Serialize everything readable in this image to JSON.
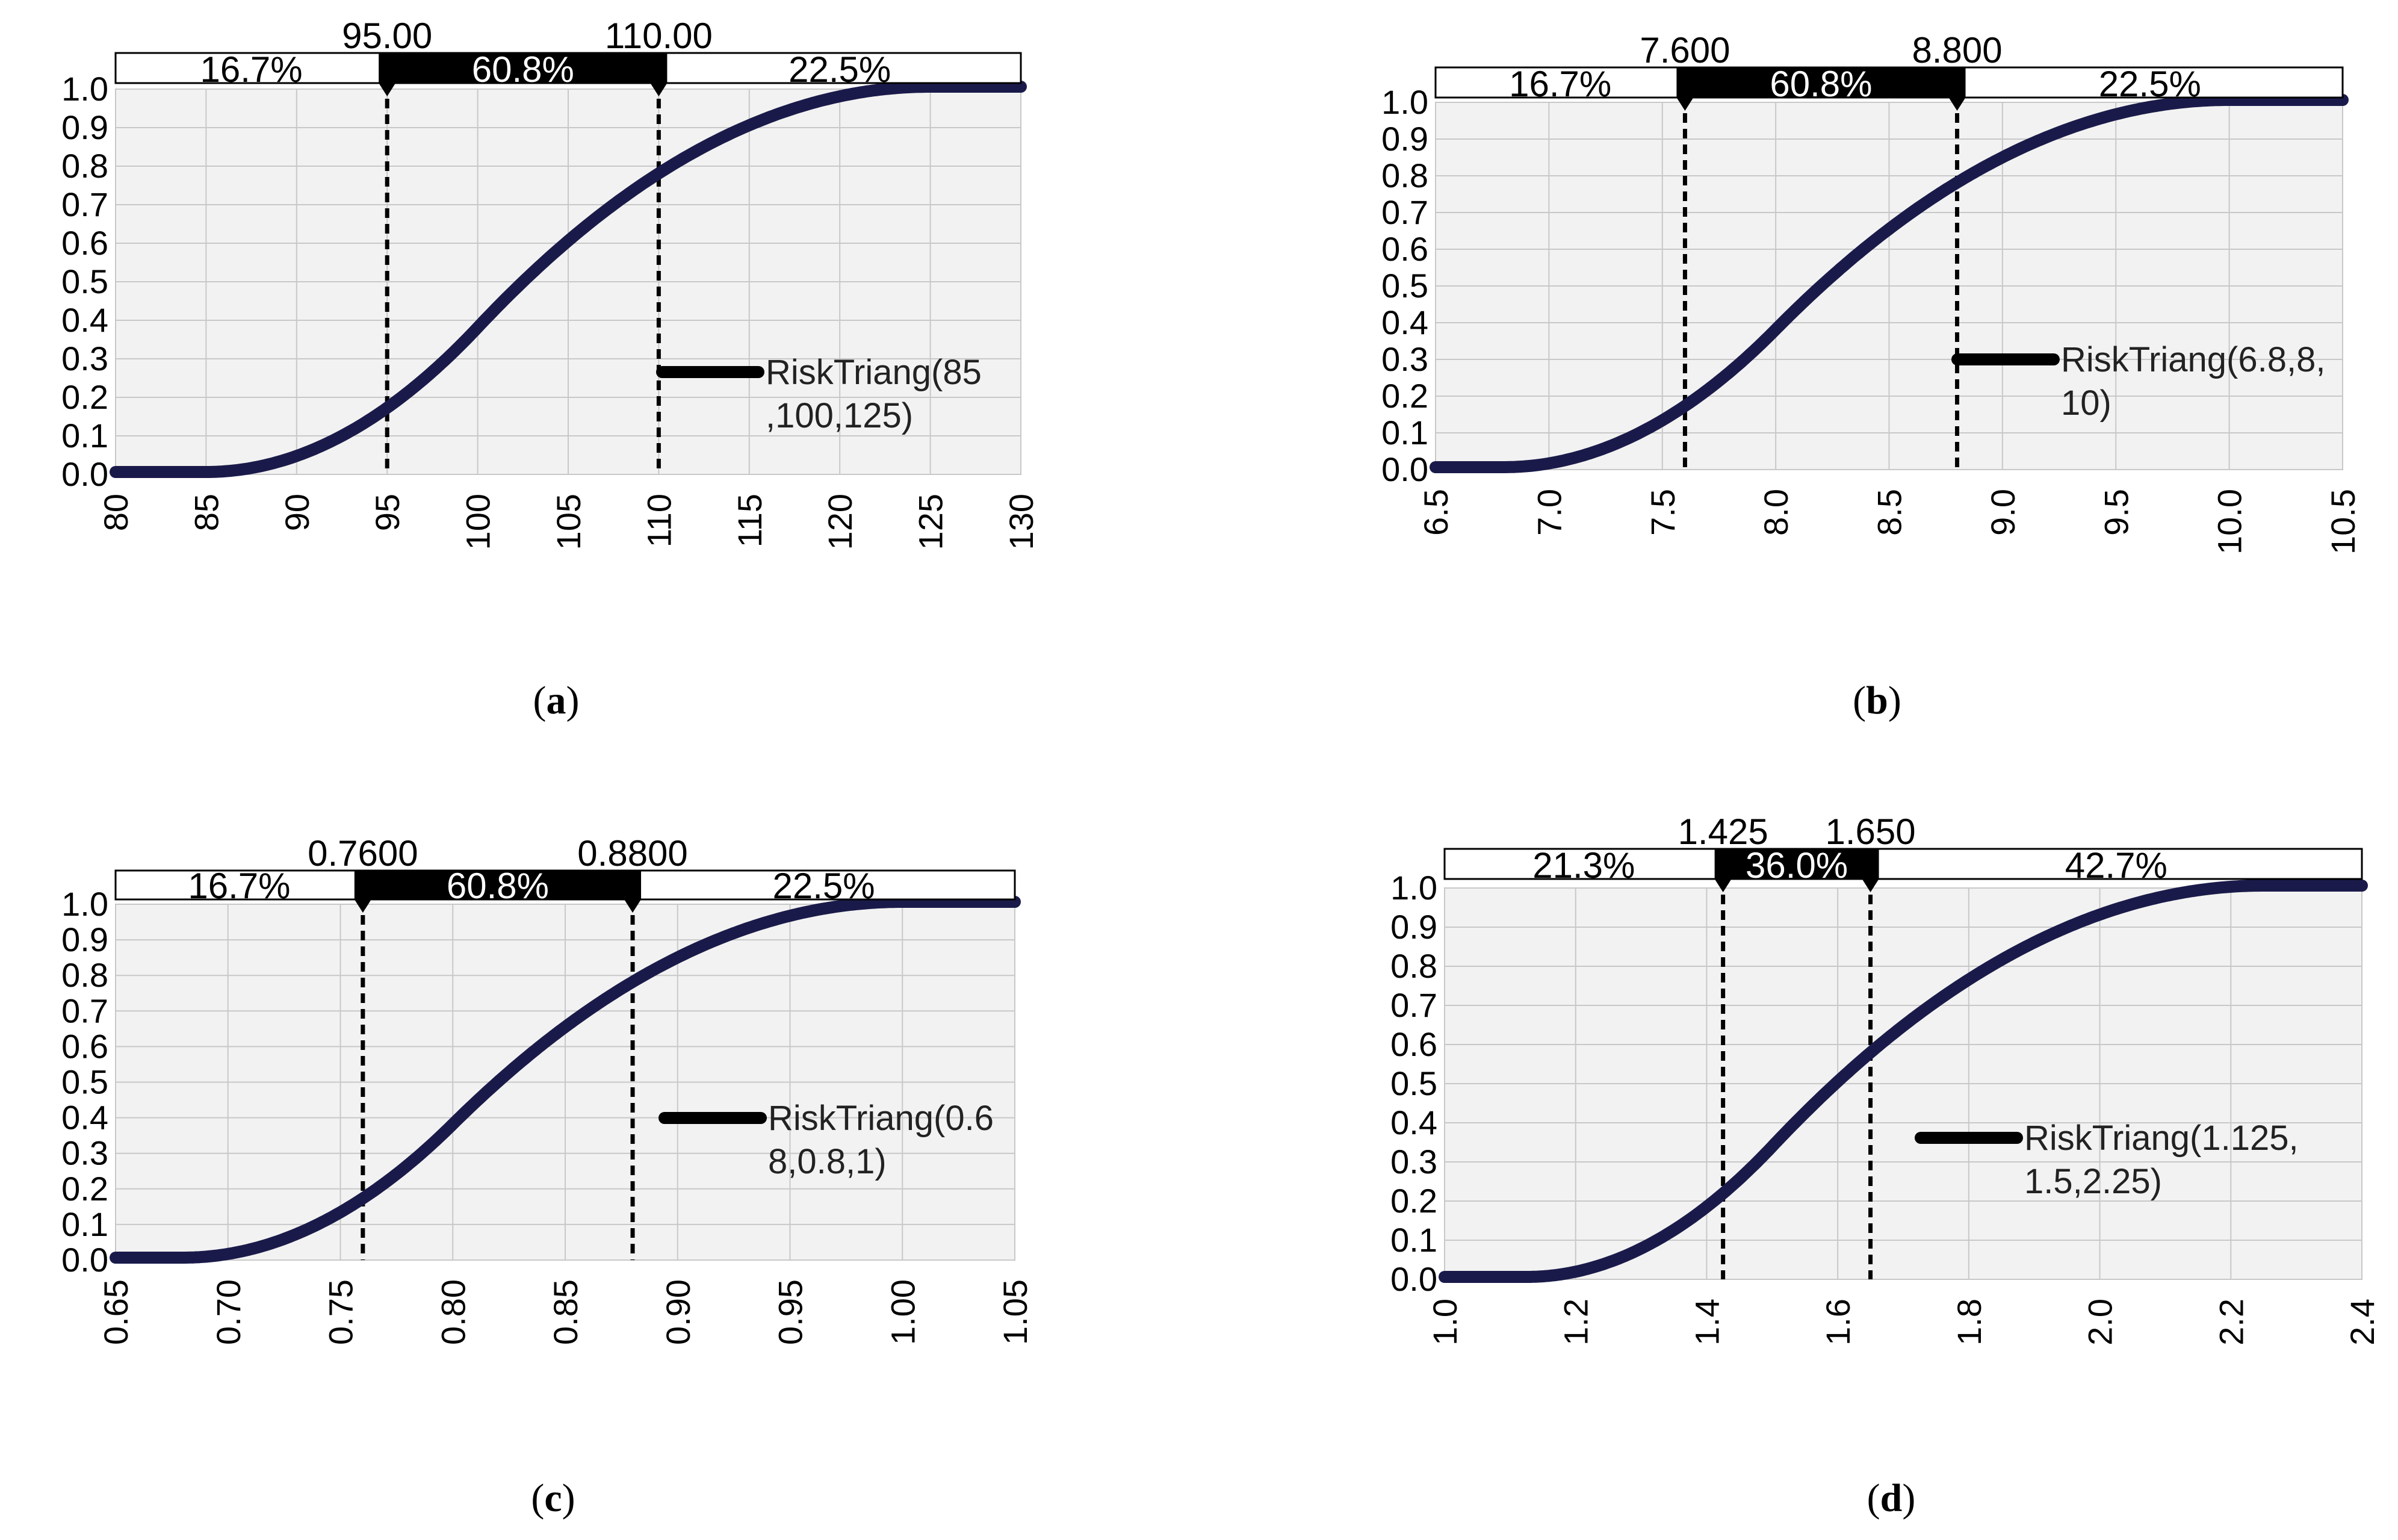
{
  "chart_data": [
    {
      "panel_label": "a",
      "type": "line",
      "series_name": "RiskTriang(85,100,125)",
      "distribution": {
        "name": "RiskTriang",
        "min": 85,
        "mode": 100,
        "max": 125
      },
      "legend_lines": [
        "RiskTriang(85",
        ",100,125)"
      ],
      "xlim": [
        80,
        130
      ],
      "xticks": [
        80,
        85,
        90,
        95,
        100,
        105,
        110,
        115,
        120,
        125,
        130
      ],
      "xtick_labels": [
        "80",
        "85",
        "90",
        "95",
        "100",
        "105",
        "110",
        "115",
        "120",
        "125",
        "130"
      ],
      "ylim": [
        0,
        1
      ],
      "yticks": [
        "0.0",
        "0.1",
        "0.2",
        "0.3",
        "0.4",
        "0.5",
        "0.6",
        "0.7",
        "0.8",
        "0.9",
        "1.0"
      ],
      "markers": [
        95,
        110
      ],
      "marker_labels": [
        "95.00",
        "110.00"
      ],
      "percent_labels": [
        "16.7%",
        "60.8%",
        "22.5%"
      ],
      "legend_placement": "center-right",
      "grid": true,
      "xlabel": "",
      "ylabel": ""
    },
    {
      "panel_label": "b",
      "type": "line",
      "series_name": "RiskTriang(6.8,8,10)",
      "distribution": {
        "name": "RiskTriang",
        "min": 6.8,
        "mode": 8,
        "max": 10
      },
      "legend_lines": [
        "RiskTriang(6.8,8,",
        "10)"
      ],
      "xlim": [
        6.5,
        10.5
      ],
      "xticks": [
        6.5,
        7.0,
        7.5,
        8.0,
        8.5,
        9.0,
        9.5,
        10.0,
        10.5
      ],
      "xtick_labels": [
        "6.5",
        "7.0",
        "7.5",
        "8.0",
        "8.5",
        "9.0",
        "9.5",
        "10.0",
        "10.5"
      ],
      "ylim": [
        0,
        1
      ],
      "yticks": [
        "0.0",
        "0.1",
        "0.2",
        "0.3",
        "0.4",
        "0.5",
        "0.6",
        "0.7",
        "0.8",
        "0.9",
        "1.0"
      ],
      "markers": [
        7.6,
        8.8
      ],
      "marker_labels": [
        "7.600",
        "8.800"
      ],
      "percent_labels": [
        "16.7%",
        "60.8%",
        "22.5%"
      ],
      "legend_placement": "center-right",
      "grid": true,
      "xlabel": "",
      "ylabel": ""
    },
    {
      "panel_label": "c",
      "type": "line",
      "series_name": "RiskTriang(0.68,0.8,1)",
      "distribution": {
        "name": "RiskTriang",
        "min": 0.68,
        "mode": 0.8,
        "max": 1
      },
      "legend_lines": [
        "RiskTriang(0.6",
        "8,0.8,1)"
      ],
      "xlim": [
        0.65,
        1.05
      ],
      "xticks": [
        0.65,
        0.7,
        0.75,
        0.8,
        0.85,
        0.9,
        0.95,
        1.0,
        1.05
      ],
      "xtick_labels": [
        "0.65",
        "0.70",
        "0.75",
        "0.80",
        "0.85",
        "0.90",
        "0.95",
        "1.00",
        "1.05"
      ],
      "ylim": [
        0,
        1
      ],
      "yticks": [
        "0.0",
        "0.1",
        "0.2",
        "0.3",
        "0.4",
        "0.5",
        "0.6",
        "0.7",
        "0.8",
        "0.9",
        "1.0"
      ],
      "markers": [
        0.76,
        0.88
      ],
      "marker_labels": [
        "0.7600",
        "0.8800"
      ],
      "percent_labels": [
        "16.7%",
        "60.8%",
        "22.5%"
      ],
      "legend_placement": "center-right",
      "grid": true,
      "xlabel": "",
      "ylabel": ""
    },
    {
      "panel_label": "d",
      "type": "line",
      "series_name": "RiskTriang(1.125,1.5,2.25)",
      "distribution": {
        "name": "RiskTriang",
        "min": 1.125,
        "mode": 1.5,
        "max": 2.25
      },
      "legend_lines": [
        "RiskTriang(1.125,",
        "1.5,2.25)"
      ],
      "xlim": [
        1.0,
        2.4
      ],
      "xticks": [
        1.0,
        1.2,
        1.4,
        1.6,
        1.8,
        2.0,
        2.2,
        2.4
      ],
      "xtick_labels": [
        "1.0",
        "1.2",
        "1.4",
        "1.6",
        "1.8",
        "2.0",
        "2.2",
        "2.4"
      ],
      "ylim": [
        0,
        1
      ],
      "yticks": [
        "0.0",
        "0.1",
        "0.2",
        "0.3",
        "0.4",
        "0.5",
        "0.6",
        "0.7",
        "0.8",
        "0.9",
        "1.0"
      ],
      "markers": [
        1.425,
        1.65
      ],
      "marker_labels": [
        "1.425",
        "1.650"
      ],
      "percent_labels": [
        "21.3%",
        "36.0%",
        "42.7%"
      ],
      "legend_placement": "center-right",
      "grid": true,
      "xlabel": "",
      "ylabel": ""
    }
  ],
  "colors": {
    "plot_background": "#f2f2f2",
    "grid": "#c8c8c8",
    "curve": "#000000",
    "curve_tint": "#1a1a4a",
    "band_fill": "#000000",
    "band_outer": "#ffffff",
    "text": "#000000"
  }
}
